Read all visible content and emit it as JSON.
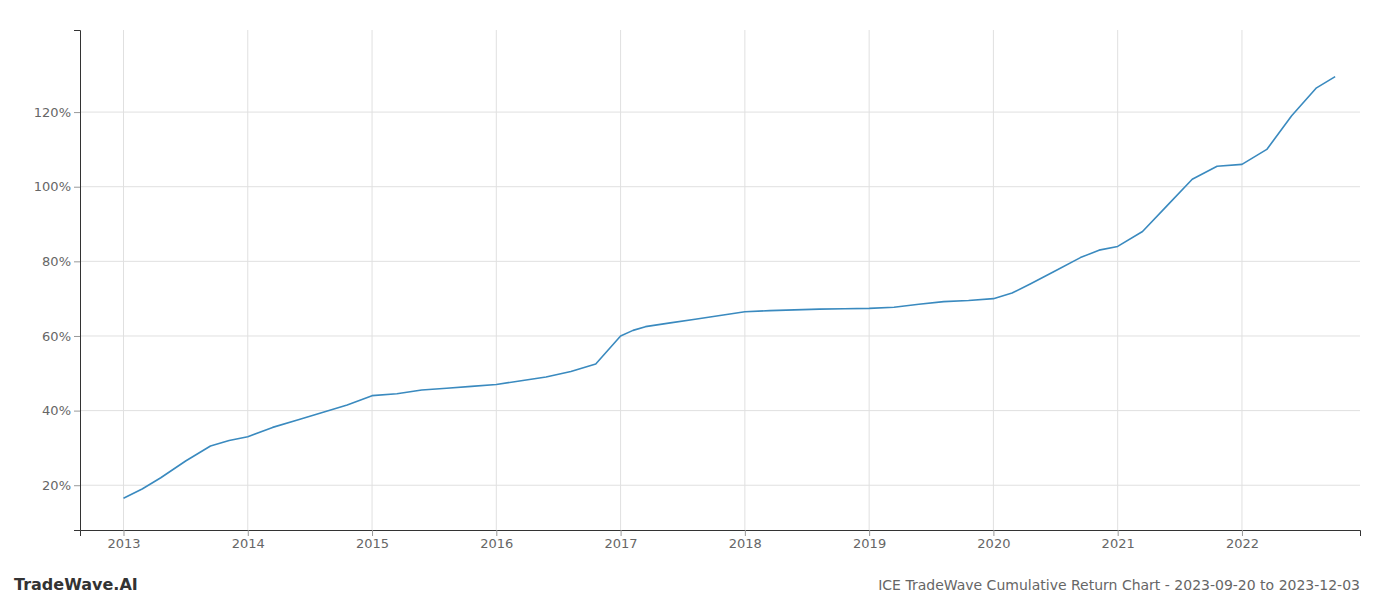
{
  "chart_data": {
    "type": "line",
    "title": "ICE TradeWave Cumulative Return Chart - 2023-09-20 to 2023-12-03",
    "annotations": [
      "TradeWave.AI"
    ],
    "color": "#3a8abf",
    "grid": true,
    "x": [
      2013.0,
      2013.15,
      2013.3,
      2013.5,
      2013.7,
      2013.85,
      2014.0,
      2014.2,
      2014.4,
      2014.6,
      2014.8,
      2015.0,
      2015.2,
      2015.4,
      2015.6,
      2015.8,
      2016.0,
      2016.2,
      2016.4,
      2016.6,
      2016.8,
      2017.0,
      2017.1,
      2017.2,
      2017.4,
      2017.6,
      2017.8,
      2018.0,
      2018.2,
      2018.4,
      2018.6,
      2018.8,
      2019.0,
      2019.2,
      2019.4,
      2019.6,
      2019.8,
      2020.0,
      2020.15,
      2020.3,
      2020.5,
      2020.7,
      2020.85,
      2021.0,
      2021.2,
      2021.4,
      2021.6,
      2021.8,
      2022.0,
      2022.2,
      2022.4,
      2022.6,
      2022.75
    ],
    "values": [
      0.165,
      0.19,
      0.22,
      0.265,
      0.305,
      0.32,
      0.33,
      0.355,
      0.375,
      0.395,
      0.415,
      0.44,
      0.445,
      0.455,
      0.46,
      0.465,
      0.47,
      0.48,
      0.49,
      0.505,
      0.525,
      0.6,
      0.615,
      0.625,
      0.635,
      0.645,
      0.655,
      0.665,
      0.668,
      0.67,
      0.672,
      0.673,
      0.674,
      0.677,
      0.685,
      0.692,
      0.695,
      0.7,
      0.715,
      0.74,
      0.775,
      0.81,
      0.83,
      0.84,
      0.88,
      0.95,
      1.02,
      1.055,
      1.06,
      1.1,
      1.19,
      1.265,
      1.295
    ],
    "xlim": [
      2012.65,
      2022.95
    ],
    "ylim": [
      0.08,
      1.42
    ],
    "xticks": [
      2013,
      2014,
      2015,
      2016,
      2017,
      2018,
      2019,
      2020,
      2021,
      2022
    ],
    "yticks": [
      {
        "value": 0.2,
        "label": "20%"
      },
      {
        "value": 0.4,
        "label": "40%"
      },
      {
        "value": 0.6,
        "label": "60%"
      },
      {
        "value": 0.8,
        "label": "80%"
      },
      {
        "value": 1.0,
        "label": "100%"
      },
      {
        "value": 1.2,
        "label": "120%"
      }
    ]
  }
}
